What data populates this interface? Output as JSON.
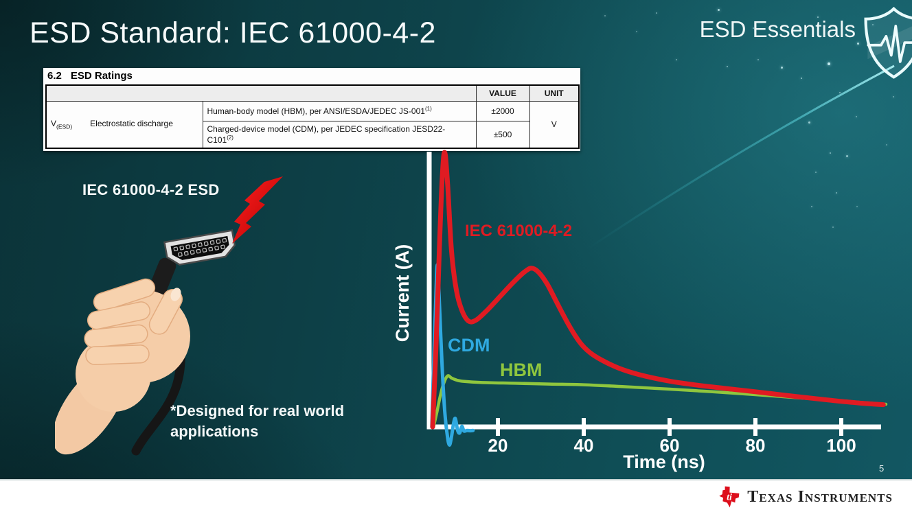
{
  "slide": {
    "title": "ESD Standard: IEC 61000-4-2",
    "brand": "ESD Essentials",
    "page_number": "5"
  },
  "datasheet_table": {
    "section_number": "6.2",
    "section_title": "ESD Ratings",
    "col_headers": {
      "value": "VALUE",
      "unit": "UNIT"
    },
    "parameter": {
      "symbol": "V",
      "symbol_sub": "(ESD)",
      "name": "Electrostatic discharge"
    },
    "rows": [
      {
        "description": "Human-body model (HBM), per ANSI/ESDA/JEDEC JS-001",
        "footnote": "(1)",
        "value": "±2000"
      },
      {
        "description": "Charged-device model (CDM), per JEDEC specification JESD22-C101",
        "footnote": "(2)",
        "value": "±500"
      }
    ],
    "unit": "V"
  },
  "illustration": {
    "label": "IEC 61000-4-2 ESD",
    "note": "*Designed for real world\napplications"
  },
  "footer": {
    "company": "Texas Instruments",
    "logo_monogram": "ti"
  },
  "chart_data": {
    "type": "line",
    "title": "",
    "xlabel": "Time (ns)",
    "ylabel": "Current (A)",
    "x_ticks": [
      20,
      40,
      60,
      80,
      100
    ],
    "xlim": [
      0,
      113
    ],
    "ylim_relative": [
      -0.1,
      1.05
    ],
    "y_axis_tick_labels": "none (schematic comparison; amplitudes relative to IEC 61000-4-2 peak = 1.0)",
    "grid": false,
    "legend": "inline labels beside curves",
    "series": [
      {
        "name": "IEC 61000-4-2",
        "color": "#e01b22",
        "points": [
          [
            4.8,
            0
          ],
          [
            5.6,
            0.3
          ],
          [
            6.3,
            0.62
          ],
          [
            7.0,
            0.9
          ],
          [
            7.6,
            1.0
          ],
          [
            8.3,
            0.88
          ],
          [
            9.2,
            0.64
          ],
          [
            10.3,
            0.5
          ],
          [
            11.6,
            0.425
          ],
          [
            13.2,
            0.385
          ],
          [
            15.0,
            0.39
          ],
          [
            17.5,
            0.425
          ],
          [
            20.5,
            0.475
          ],
          [
            23.5,
            0.525
          ],
          [
            26.0,
            0.562
          ],
          [
            27.8,
            0.578
          ],
          [
            29.5,
            0.563
          ],
          [
            31.5,
            0.52
          ],
          [
            33.5,
            0.46
          ],
          [
            35.5,
            0.4
          ],
          [
            37.5,
            0.345
          ],
          [
            39.5,
            0.3
          ],
          [
            41.5,
            0.27
          ],
          [
            44.0,
            0.245
          ],
          [
            48.0,
            0.215
          ],
          [
            53.0,
            0.19
          ],
          [
            59.5,
            0.168
          ],
          [
            66.0,
            0.153
          ],
          [
            73.0,
            0.14
          ],
          [
            80.0,
            0.128
          ],
          [
            87.0,
            0.115
          ],
          [
            94.0,
            0.103
          ],
          [
            100.0,
            0.093
          ],
          [
            105.0,
            0.086
          ],
          [
            109.8,
            0.081
          ]
        ]
      },
      {
        "name": "CDM",
        "color": "#2fa9e0",
        "points": [
          [
            4.6,
            0
          ],
          [
            5.0,
            0.22
          ],
          [
            5.5,
            0.45
          ],
          [
            5.9,
            0.59
          ],
          [
            6.4,
            0.44
          ],
          [
            7.0,
            0.22
          ],
          [
            7.6,
            0.06
          ],
          [
            8.2,
            -0.03
          ],
          [
            8.7,
            -0.066
          ],
          [
            9.2,
            -0.035
          ],
          [
            9.7,
            0.015
          ],
          [
            10.1,
            0.03
          ],
          [
            10.6,
            -0.012
          ],
          [
            11.1,
            -0.022
          ],
          [
            11.6,
            0.002
          ],
          [
            12.1,
            -0.015
          ],
          [
            12.8,
            -0.013
          ],
          [
            13.5,
            -0.014
          ],
          [
            14.2,
            -0.013
          ]
        ]
      },
      {
        "name": "HBM",
        "color": "#8fc63e",
        "points": [
          [
            5.0,
            0
          ],
          [
            5.8,
            0.055
          ],
          [
            6.6,
            0.115
          ],
          [
            7.4,
            0.16
          ],
          [
            8.3,
            0.186
          ],
          [
            9.2,
            0.178
          ],
          [
            10.5,
            0.17
          ],
          [
            12.0,
            0.166
          ],
          [
            16.0,
            0.162
          ],
          [
            24.0,
            0.159
          ],
          [
            32.0,
            0.156
          ],
          [
            40.0,
            0.1535
          ],
          [
            50.0,
            0.146
          ],
          [
            60.0,
            0.1375
          ],
          [
            70.0,
            0.128
          ],
          [
            80.0,
            0.1175
          ],
          [
            90.0,
            0.106
          ],
          [
            100.0,
            0.095
          ],
          [
            105.0,
            0.0885
          ],
          [
            110.4,
            0.0825
          ]
        ]
      }
    ]
  }
}
